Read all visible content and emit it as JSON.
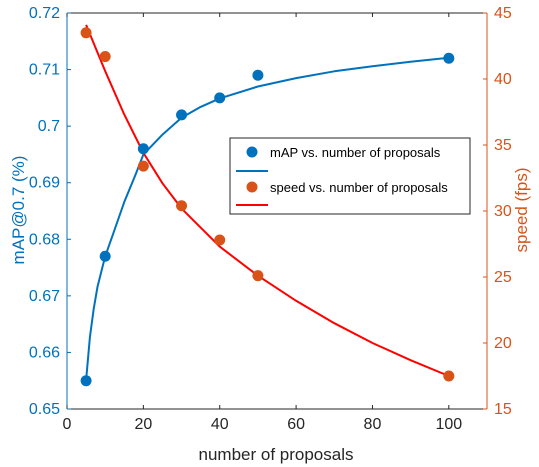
{
  "chart_data": {
    "type": "scatter",
    "xlabel": "number of proposals",
    "ylabel_left": "mAP@0.7 (%)",
    "ylabel_right": "speed (fps)",
    "xlim": [
      0,
      110
    ],
    "ylim_left": [
      0.65,
      0.72
    ],
    "ylim_right": [
      15,
      45
    ],
    "x_ticks": [
      "0",
      "20",
      "40",
      "60",
      "80",
      "100"
    ],
    "x_tick_values": [
      0,
      20,
      40,
      60,
      80,
      100
    ],
    "y_left_ticks": [
      "0.65",
      "0.66",
      "0.67",
      "0.68",
      "0.69",
      "0.7",
      "0.71",
      "0.72"
    ],
    "y_left_tick_values": [
      0.65,
      0.66,
      0.67,
      0.68,
      0.69,
      0.7,
      0.71,
      0.72
    ],
    "y_right_ticks": [
      "15",
      "20",
      "25",
      "30",
      "35",
      "40",
      "45"
    ],
    "y_right_tick_values": [
      15,
      20,
      25,
      30,
      35,
      40,
      45
    ],
    "grid": false,
    "legend_position": "center-right",
    "series": [
      {
        "name": "mAP vs. number of proposals",
        "axis": "left",
        "color": "#0072BD",
        "x": [
          5,
          10,
          20,
          30,
          40,
          50,
          100
        ],
        "y": [
          0.655,
          0.677,
          0.696,
          0.702,
          0.705,
          0.709,
          0.712
        ]
      },
      {
        "name": "speed vs. number of proposals",
        "axis": "right",
        "color": "#D95319",
        "x": [
          5,
          10,
          20,
          30,
          40,
          50,
          100
        ],
        "y": [
          43.5,
          41.7,
          33.4,
          30.4,
          27.8,
          25.1,
          17.5
        ]
      }
    ],
    "fit_curves": [
      {
        "legend": "",
        "axis": "left",
        "color": "#0072BD",
        "x": [
          5,
          6,
          7,
          8,
          10,
          12,
          15,
          18,
          20,
          25,
          30,
          35,
          40,
          50,
          60,
          70,
          80,
          90,
          100
        ],
        "y": [
          0.6551,
          0.6627,
          0.6677,
          0.6716,
          0.677,
          0.6808,
          0.6866,
          0.6915,
          0.695,
          0.6985,
          0.7015,
          0.7034,
          0.7049,
          0.707,
          0.7085,
          0.7097,
          0.7106,
          0.7114,
          0.7121
        ]
      },
      {
        "legend": "",
        "axis": "right",
        "color": "#FF0000",
        "x": [
          5,
          10,
          15,
          20,
          25,
          30,
          40,
          50,
          60,
          70,
          80,
          90,
          100
        ],
        "y": [
          44.1,
          40.6,
          37.3,
          34.4,
          32.1,
          30.2,
          27.3,
          25.1,
          23.2,
          21.5,
          20.0,
          18.7,
          17.5
        ]
      }
    ]
  }
}
